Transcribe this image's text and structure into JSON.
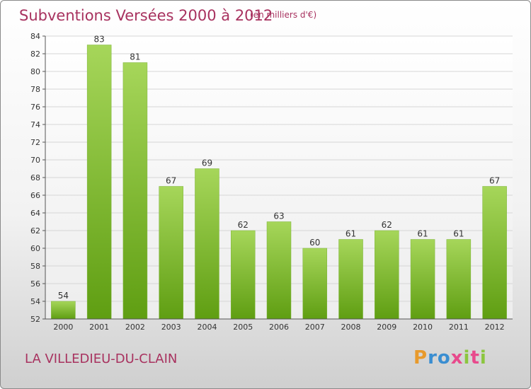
{
  "title": "Subventions Versées 2000 à 2012",
  "subtitle": "(en milliers d'€)",
  "commune": "LA VILLEDIEU-DU-CLAIN",
  "logo": {
    "letters": [
      "P",
      "r",
      "o",
      "x",
      "i",
      "t",
      "i"
    ],
    "colors": [
      "#e89a2c",
      "#3a8ed1",
      "#3a8ed1",
      "#e84a8c",
      "#8cc63f",
      "#e84a8c",
      "#8cc63f"
    ]
  },
  "colors": {
    "bar_top": "#a6d65a",
    "bar_bottom": "#5f9e12",
    "title": "#a8325f"
  },
  "chart_data": {
    "type": "bar",
    "categories": [
      "2000",
      "2001",
      "2002",
      "2003",
      "2004",
      "2005",
      "2006",
      "2007",
      "2008",
      "2009",
      "2010",
      "2011",
      "2012"
    ],
    "values": [
      54,
      83,
      81,
      67,
      69,
      62,
      63,
      60,
      61,
      62,
      61,
      61,
      67
    ],
    "title": "Subventions Versées 2000 à 2012",
    "subtitle": "(en milliers d'€)",
    "xlabel": "",
    "ylabel": "",
    "ylim": [
      52,
      84
    ],
    "yticks": [
      52,
      54,
      56,
      58,
      60,
      62,
      64,
      66,
      68,
      70,
      72,
      74,
      76,
      78,
      80,
      82,
      84
    ],
    "grid": true,
    "legend": "none"
  }
}
